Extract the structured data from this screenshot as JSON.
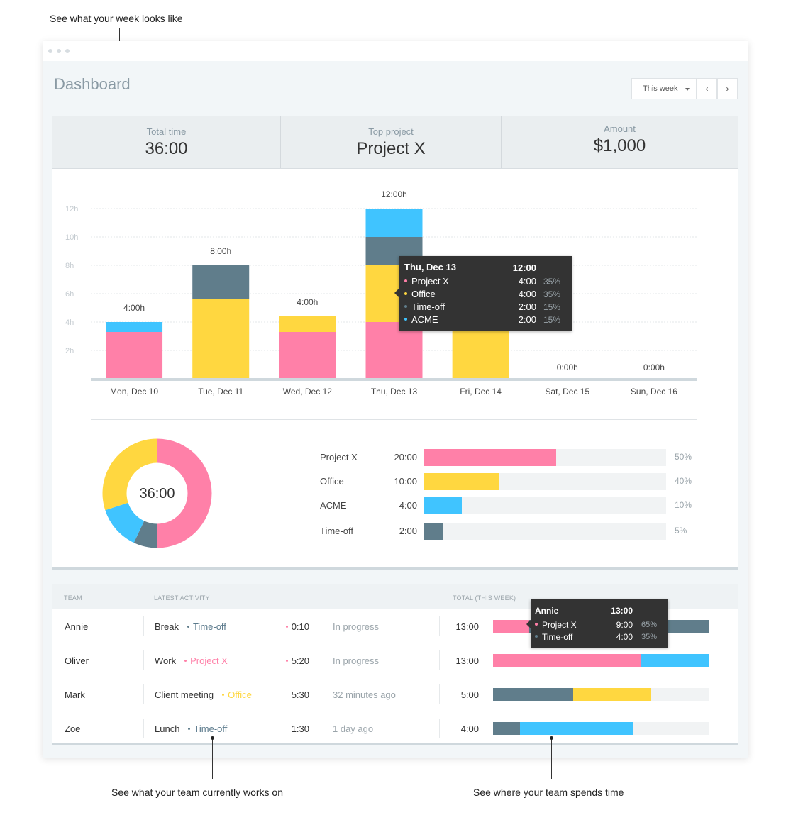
{
  "callouts": {
    "week": "See what your week looks like",
    "team": "See what your team currently works on",
    "spend": "See where your team spends time"
  },
  "colors": {
    "project_x": "#ff80a8",
    "office": "#ffd740",
    "time_off": "#607d8b",
    "acme": "#40c4ff"
  },
  "header": {
    "title": "Dashboard",
    "range_label": "This week",
    "prev_icon": "‹",
    "next_icon": "›"
  },
  "summary": {
    "total_label": "Total time",
    "total_value": "36:00",
    "top_label": "Top project",
    "top_value": "Project X",
    "amount_label": "Amount",
    "amount_value": "$1,000"
  },
  "chart_data": {
    "type": "bar",
    "stacked": true,
    "categories": [
      "Mon, Dec 10",
      "Tue, Dec 11",
      "Wed, Dec 12",
      "Thu, Dec 13",
      "Fri, Dec 14",
      "Sat, Dec 15",
      "Sun, Dec 16"
    ],
    "ylim": [
      0,
      12
    ],
    "yticks": [
      "2h",
      "4h",
      "6h",
      "8h",
      "10h",
      "12h"
    ],
    "grid": true,
    "total_labels": [
      "4:00h",
      "8:00h",
      "4:00h",
      "12:00h",
      "",
      "0:00h",
      "0:00h"
    ],
    "series": [
      {
        "name": "Project X",
        "color": "#ff80a8",
        "values": [
          3.3,
          0,
          3.3,
          4,
          0,
          0,
          0
        ]
      },
      {
        "name": "Office",
        "color": "#ffd740",
        "values": [
          0,
          5.6,
          1.1,
          4,
          4.3,
          0,
          0
        ]
      },
      {
        "name": "Time-off",
        "color": "#607d8b",
        "values": [
          0,
          2.4,
          0,
          2,
          0,
          0,
          0
        ]
      },
      {
        "name": "ACME",
        "color": "#40c4ff",
        "values": [
          0.7,
          0,
          0,
          2,
          0,
          0,
          0
        ]
      }
    ]
  },
  "chart_tooltip": {
    "title": "Thu, Dec 13",
    "total": "12:00",
    "rows": [
      {
        "name": "Project X",
        "value": "4:00",
        "pct": "35%",
        "color": "#ff80a8"
      },
      {
        "name": "Office",
        "value": "4:00",
        "pct": "35%",
        "color": "#ffd740"
      },
      {
        "name": "Time-off",
        "value": "2:00",
        "pct": "15%",
        "color": "#607d8b"
      },
      {
        "name": "ACME",
        "value": "2:00",
        "pct": "15%",
        "color": "#40c4ff"
      }
    ]
  },
  "donut": {
    "center": "36:00",
    "slices": [
      {
        "name": "Project X",
        "value": 50,
        "color": "#ff80a8"
      },
      {
        "name": "Time-off",
        "value": 7,
        "color": "#607d8b"
      },
      {
        "name": "ACME",
        "value": 13,
        "color": "#40c4ff"
      },
      {
        "name": "Office",
        "value": 30,
        "color": "#ffd740"
      }
    ]
  },
  "projects": [
    {
      "name": "Project X",
      "time": "20:00",
      "pct": "50%",
      "fill": 0.545,
      "color": "#ff80a8"
    },
    {
      "name": "Office",
      "time": "10:00",
      "pct": "40%",
      "fill": 0.308,
      "color": "#ffd740"
    },
    {
      "name": "ACME",
      "time": "4:00",
      "pct": "10%",
      "fill": 0.155,
      "color": "#40c4ff"
    },
    {
      "name": "Time-off",
      "time": "2:00",
      "pct": "5%",
      "fill": 0.08,
      "color": "#607d8b"
    }
  ],
  "team": {
    "headers": {
      "team": "Team",
      "activity": "Latest activity",
      "total": "Total (this week)"
    },
    "rows": [
      {
        "name": "Annie",
        "task": "Break",
        "tag": "Time-off",
        "tag_color": "#607d8b",
        "duration": "0:10",
        "duration_dot": "#ff80a8",
        "status": "In progress",
        "total": "13:00",
        "segments": [
          {
            "color": "#ff80a8",
            "fraction": 0.167
          },
          {
            "color": "#607d8b",
            "fraction": 0.833
          }
        ]
      },
      {
        "name": "Oliver",
        "task": "Work",
        "tag": "Project X",
        "tag_color": "#ff80a8",
        "duration": "5:20",
        "duration_dot": "#ff80a8",
        "status": "In progress",
        "total": "13:00",
        "segments": [
          {
            "color": "#ff80a8",
            "fraction": 0.685
          },
          {
            "color": "#40c4ff",
            "fraction": 0.315
          }
        ]
      },
      {
        "name": "Mark",
        "task": "Client meeting",
        "tag": "Office",
        "tag_color": "#ffd740",
        "duration": "5:30",
        "duration_dot": "",
        "status": "32 minutes ago",
        "total": "5:00",
        "segments": [
          {
            "color": "#607d8b",
            "fraction": 0.37
          },
          {
            "color": "#ffd740",
            "fraction": 0.36
          }
        ]
      },
      {
        "name": "Zoe",
        "task": "Lunch",
        "tag": "Time-off",
        "tag_color": "#607d8b",
        "duration": "1:30",
        "duration_dot": "",
        "status": "1 day ago",
        "total": "4:00",
        "segments": [
          {
            "color": "#607d8b",
            "fraction": 0.125
          },
          {
            "color": "#40c4ff",
            "fraction": 0.52
          }
        ]
      }
    ]
  },
  "team_tooltip": {
    "title": "Annie",
    "total": "13:00",
    "rows": [
      {
        "name": "Project X",
        "value": "9:00",
        "pct": "65%",
        "color": "#ff80a8"
      },
      {
        "name": "Time-off",
        "value": "4:00",
        "pct": "35%",
        "color": "#607d8b"
      }
    ]
  }
}
